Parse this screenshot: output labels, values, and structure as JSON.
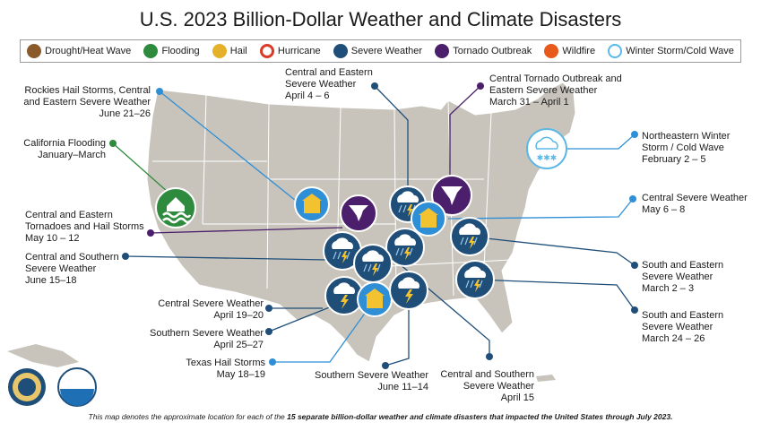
{
  "title": "U.S. 2023 Billion-Dollar Weather and Climate Disasters",
  "legend": [
    {
      "label": "Drought/Heat Wave",
      "icon": "drought-icon",
      "color": "#8b5a2b"
    },
    {
      "label": "Flooding",
      "icon": "flooding-icon",
      "color": "#2e8b3d"
    },
    {
      "label": "Hail",
      "icon": "hail-icon",
      "color": "#e6b12a"
    },
    {
      "label": "Hurricane",
      "icon": "hurricane-icon",
      "color": "#d93b2b"
    },
    {
      "label": "Severe Weather",
      "icon": "severe-weather-icon",
      "color": "#1f4e79"
    },
    {
      "label": "Tornado Outbreak",
      "icon": "tornado-icon",
      "color": "#4b1f6b"
    },
    {
      "label": "Wildfire",
      "icon": "wildfire-icon",
      "color": "#e85a1b"
    },
    {
      "label": "Winter Storm/Cold Wave",
      "icon": "winter-storm-icon",
      "color": "#5bb8e6"
    }
  ],
  "events": {
    "rockies": [
      "Rockies Hail Storms, Central",
      "and Eastern Severe Weather",
      "June 21–26"
    ],
    "california": [
      "California Flooding",
      "January–March"
    ],
    "tornado_may": [
      "Central and Eastern",
      "Tornadoes and Hail Storms",
      "May 10 – 12"
    ],
    "central_south_june": [
      "Central and Southern",
      "Severe Weather",
      "June 15–18"
    ],
    "central_april": [
      "Central Severe Weather",
      "April 19–20"
    ],
    "southern_april": [
      "Southern Severe Weather",
      "April 25–27"
    ],
    "texas_hail": [
      "Texas Hail Storms",
      "May 18–19"
    ],
    "southern_june": [
      "Southern Severe Weather",
      "June 11–14"
    ],
    "central_south_april15": [
      "Central and Southern",
      "Severe Weather",
      "April 15"
    ],
    "central_eastern_april": [
      "Central and Eastern",
      "Severe Weather",
      "April 4 – 6"
    ],
    "tornado_march": [
      "Central Tornado Outbreak and",
      "Eastern Severe Weather",
      "March 31 – April 1"
    ],
    "winter": [
      "Northeastern Winter",
      "Storm / Cold Wave",
      "February 2 – 5"
    ],
    "central_may": [
      "Central Severe Weather",
      "May 6 – 8"
    ],
    "se_march2": [
      "South and Eastern",
      "Severe Weather",
      "March 2 – 3"
    ],
    "se_march24": [
      "South and Eastern",
      "Severe Weather",
      "March 24 – 26"
    ]
  },
  "footer": {
    "prefix": "This map denotes the approximate location for each of the ",
    "bold": "15 separate billion-dollar weather and climate disasters that impacted the United States through July 2023.",
    "suffix": ""
  },
  "logos": {
    "noaa": "NOAA",
    "doc": "DEPARTMENT OF COMMERCE"
  }
}
